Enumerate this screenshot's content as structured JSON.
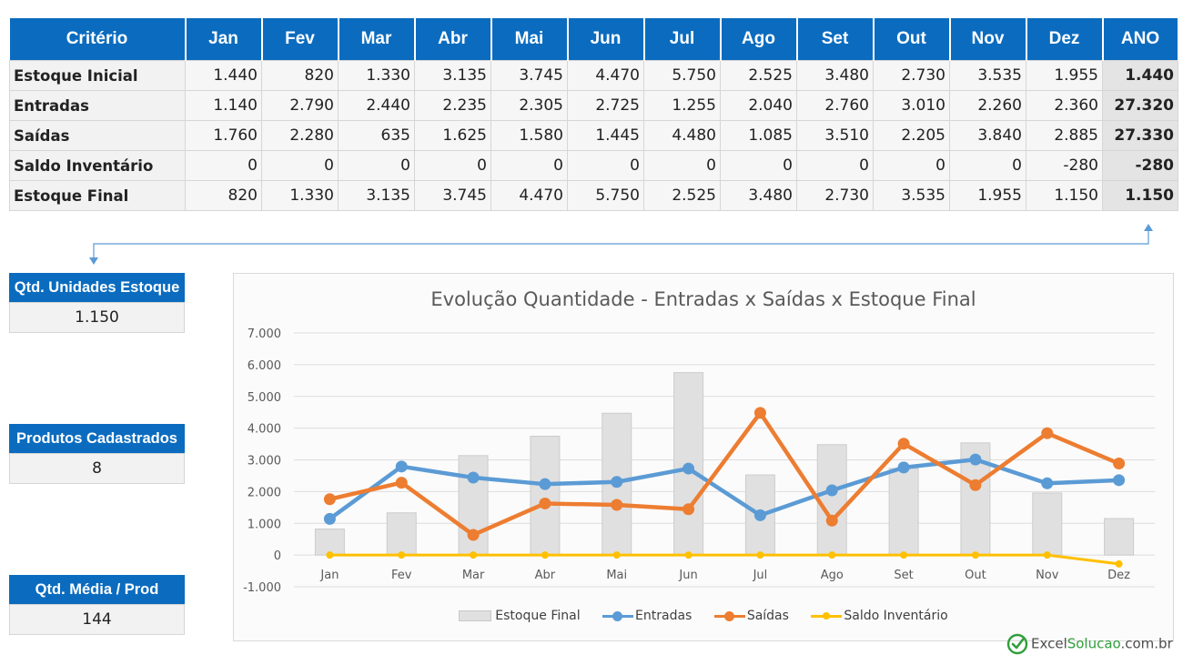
{
  "table": {
    "header": [
      "Critério",
      "Jan",
      "Fev",
      "Mar",
      "Abr",
      "Mai",
      "Jun",
      "Jul",
      "Ago",
      "Set",
      "Out",
      "Nov",
      "Dez",
      "ANO"
    ],
    "rows": [
      {
        "label": "Estoque Inicial",
        "values": [
          "1.440",
          "820",
          "1.330",
          "3.135",
          "3.745",
          "4.470",
          "5.750",
          "2.525",
          "3.480",
          "2.730",
          "3.535",
          "1.955"
        ],
        "total": "1.440"
      },
      {
        "label": "Entradas",
        "values": [
          "1.140",
          "2.790",
          "2.440",
          "2.235",
          "2.305",
          "2.725",
          "1.255",
          "2.040",
          "2.760",
          "3.010",
          "2.260",
          "2.360"
        ],
        "total": "27.320"
      },
      {
        "label": "Saídas",
        "values": [
          "1.760",
          "2.280",
          "635",
          "1.625",
          "1.580",
          "1.445",
          "4.480",
          "1.085",
          "3.510",
          "2.205",
          "3.840",
          "2.885"
        ],
        "total": "27.330"
      },
      {
        "label": "Saldo Inventário",
        "values": [
          "0",
          "0",
          "0",
          "0",
          "0",
          "0",
          "0",
          "0",
          "0",
          "0",
          "0",
          "-280"
        ],
        "total": "-280"
      },
      {
        "label": "Estoque Final",
        "values": [
          "820",
          "1.330",
          "3.135",
          "3.745",
          "4.470",
          "5.750",
          "2.525",
          "3.480",
          "2.730",
          "3.535",
          "1.955",
          "1.150"
        ],
        "total": "1.150"
      }
    ]
  },
  "kpis": {
    "stock_units": {
      "label": "Qtd. Unidades Estoque",
      "value": "1.150"
    },
    "products": {
      "label": "Produtos Cadastrados",
      "value": "8"
    },
    "avg_per_product": {
      "label": "Qtd. Média / Prod",
      "value": "144"
    }
  },
  "chart_data": {
    "type": "bar",
    "title": "Evolução Quantidade - Entradas x Saídas x Estoque Final",
    "categories": [
      "Jan",
      "Fev",
      "Mar",
      "Abr",
      "Mai",
      "Jun",
      "Jul",
      "Ago",
      "Set",
      "Out",
      "Nov",
      "Dez"
    ],
    "ylim": [
      -1000,
      7000
    ],
    "yticks": [
      "-1.000",
      "0",
      "1.000",
      "2.000",
      "3.000",
      "4.000",
      "5.000",
      "6.000",
      "7.000"
    ],
    "ytick_values": [
      -1000,
      0,
      1000,
      2000,
      3000,
      4000,
      5000,
      6000,
      7000
    ],
    "grid": true,
    "legend_position": "bottom",
    "series": [
      {
        "name": "Estoque Final",
        "type": "bar",
        "color": "#e0e0e0",
        "values": [
          820,
          1330,
          3135,
          3745,
          4470,
          5750,
          2525,
          3480,
          2730,
          3535,
          1955,
          1150
        ]
      },
      {
        "name": "Entradas",
        "type": "line",
        "color": "#5b9bd5",
        "values": [
          1140,
          2790,
          2440,
          2235,
          2305,
          2725,
          1255,
          2040,
          2760,
          3010,
          2260,
          2360
        ]
      },
      {
        "name": "Saídas",
        "type": "line",
        "color": "#ed7d31",
        "values": [
          1760,
          2280,
          635,
          1625,
          1580,
          1445,
          4480,
          1085,
          3510,
          2205,
          3840,
          2885
        ]
      },
      {
        "name": "Saldo Inventário",
        "type": "line",
        "color": "#ffc000",
        "values": [
          0,
          0,
          0,
          0,
          0,
          0,
          0,
          0,
          0,
          0,
          0,
          -280
        ]
      }
    ]
  },
  "logo": {
    "part1": "Excel",
    "part2": "Solucao",
    "part3": ".com.br"
  },
  "colors": {
    "header_blue": "#0b6cbf",
    "cell_bg": "#f6f6f6",
    "total_bg": "#e4e4e4"
  }
}
